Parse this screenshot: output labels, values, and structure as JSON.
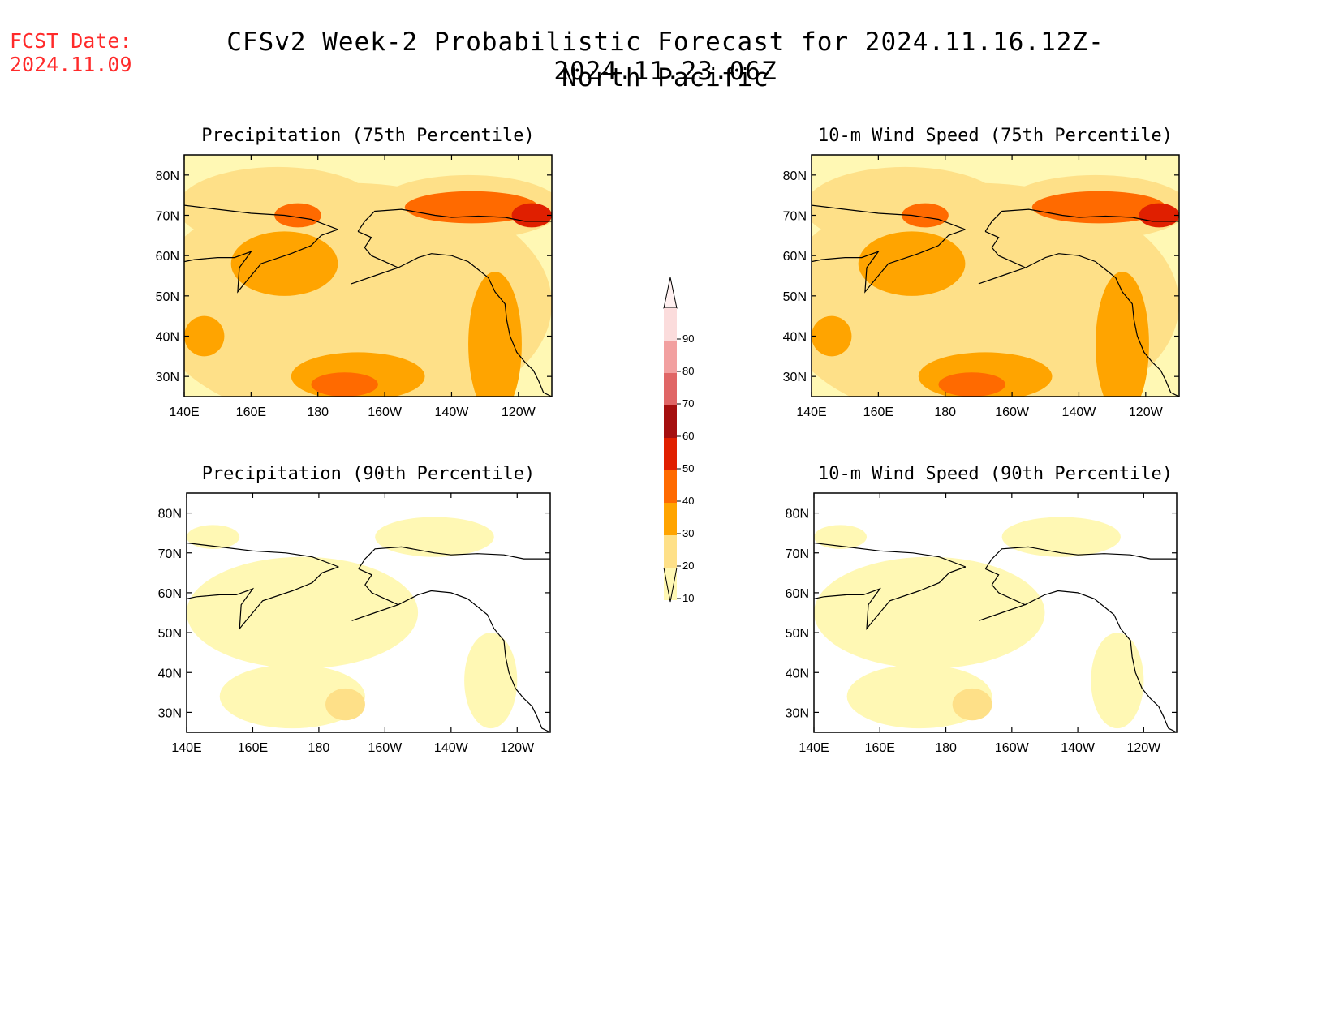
{
  "fcst": {
    "label": "FCST Date:",
    "date": "2024.11.09"
  },
  "title": {
    "main": "CFSv2 Week-2 Probabilistic Forecast for 2024.11.16.12Z-2024.11.23.06Z",
    "region": "North Pacific"
  },
  "axes": {
    "lat_labels": [
      "80N",
      "70N",
      "60N",
      "50N",
      "40N",
      "30N"
    ],
    "lon_labels": [
      "140E",
      "160E",
      "180",
      "160W",
      "140W",
      "120W"
    ],
    "lat_values": [
      80,
      70,
      60,
      50,
      40,
      30
    ],
    "lon_values": [
      140,
      160,
      180,
      200,
      220,
      240
    ],
    "lat_range": [
      25,
      85
    ],
    "lon_range": [
      140,
      250
    ]
  },
  "panels": [
    {
      "title": "Precipitation (75th Percentile)",
      "level": "high"
    },
    {
      "title": "10-m Wind Speed (75th Percentile)",
      "level": "high"
    },
    {
      "title": "Precipitation (90th Percentile)",
      "level": "low"
    },
    {
      "title": "10-m Wind Speed (90th Percentile)",
      "level": "low"
    }
  ],
  "colorbar": {
    "labels": [
      "90",
      "80",
      "70",
      "60",
      "50",
      "40",
      "30",
      "20",
      "10"
    ],
    "colors": [
      "#fbdcdc",
      "#f2a0a0",
      "#e06666",
      "#a50f0f",
      "#e01f00",
      "#ff6a00",
      "#ffa400",
      "#fee088",
      "#fff8b4"
    ]
  },
  "colors": {
    "fcst_text": "#ff2a2a"
  }
}
